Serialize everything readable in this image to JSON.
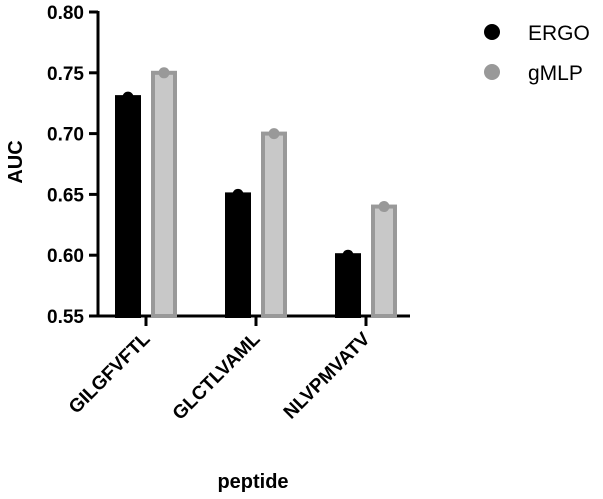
{
  "chart_data": {
    "type": "bar",
    "categories": [
      "GILGFVFTL",
      "GLCTLVAML",
      "NLVPMVATV"
    ],
    "series": [
      {
        "name": "ERGO",
        "values": [
          0.73,
          0.65,
          0.6
        ],
        "fill": "#000000",
        "stroke": "#000000",
        "dot": "#000000"
      },
      {
        "name": "gMLP",
        "values": [
          0.75,
          0.7,
          0.64
        ],
        "fill": "#c8c8c8",
        "stroke": "#999999",
        "dot": "#999999"
      }
    ],
    "title": "",
    "xlabel": "peptide",
    "ylabel": "AUC",
    "ylim": [
      0.55,
      0.8
    ],
    "yticks": [
      "0.55",
      "0.60",
      "0.65",
      "0.70",
      "0.75",
      "0.80"
    ],
    "grid": false,
    "legend_position": "top-right"
  }
}
